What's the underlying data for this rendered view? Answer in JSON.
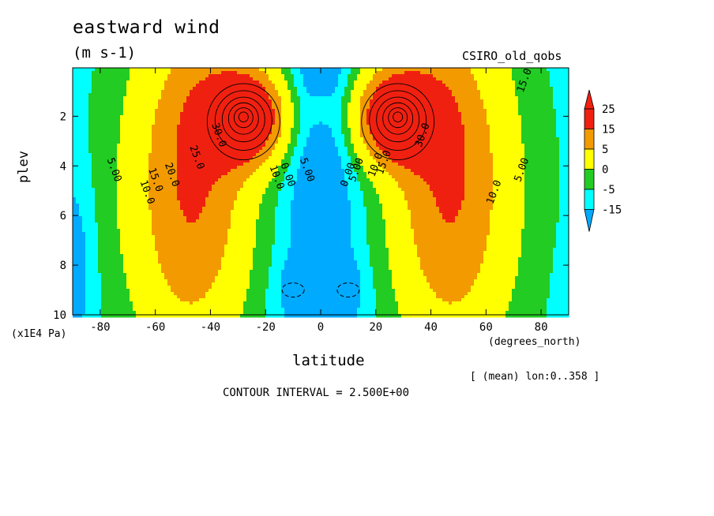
{
  "header": {
    "title": "eastward wind",
    "units": "(m s-1)",
    "model": "CSIRO_old_qobs"
  },
  "footer": {
    "ylabel_multiplier": "(x1E4 Pa)",
    "xlabel_units": "(degrees_north)",
    "averaging_note": "[ (mean) lon:0..358 ]",
    "contour_interval": "CONTOUR INTERVAL = 2.500E+00"
  },
  "chart_data": {
    "type": "heatmap",
    "title": "eastward wind",
    "xlabel": "latitude",
    "ylabel": "plev",
    "xlim": [
      -90,
      90
    ],
    "ylim": [
      10,
      0.05
    ],
    "y_inverted": true,
    "xticks": [
      -80,
      -60,
      -40,
      -20,
      0,
      20,
      40,
      60,
      80
    ],
    "yticks": [
      2,
      4,
      6,
      8,
      10
    ],
    "contour_interval": 2.5,
    "colorbar": {
      "labels": [
        "25",
        "15",
        "5",
        "0",
        "-5",
        "-15"
      ],
      "levels": [
        25,
        15,
        5,
        0,
        -5,
        -15
      ],
      "colors": [
        "#f02010",
        "#f39a00",
        "#ffff00",
        "#22cc22",
        "#00ffff",
        "#00aaff"
      ]
    },
    "contour_labels": [
      {
        "text": "30.0",
        "lat": -38,
        "plev": 2.8
      },
      {
        "text": "25.0",
        "lat": -46,
        "plev": 3.7
      },
      {
        "text": "20.0",
        "lat": -55,
        "plev": 4.4
      },
      {
        "text": "15.0",
        "lat": -61,
        "plev": 4.6
      },
      {
        "text": "10.0",
        "lat": -64,
        "plev": 5.1
      },
      {
        "text": "5.00",
        "lat": -76,
        "plev": 4.2
      },
      {
        "text": "5.00",
        "lat": -6,
        "plev": 4.2
      },
      {
        "text": "0.00",
        "lat": -13,
        "plev": 4.4
      },
      {
        "text": "10.0",
        "lat": -17,
        "plev": 4.5
      },
      {
        "text": "0.00",
        "lat": 11,
        "plev": 4.4
      },
      {
        "text": "5.00",
        "lat": 14,
        "plev": 4.2
      },
      {
        "text": "10.0",
        "lat": 21,
        "plev": 4.0
      },
      {
        "text": "15.0",
        "lat": 24,
        "plev": 3.9
      },
      {
        "text": "30.0",
        "lat": 38,
        "plev": 2.8
      },
      {
        "text": "10.0",
        "lat": 64,
        "plev": 5.1
      },
      {
        "text": "5.00",
        "lat": 74,
        "plev": 4.2
      },
      {
        "text": "15.0",
        "lat": 75,
        "plev": 0.6
      }
    ],
    "jet_cores": [
      {
        "lat": -28,
        "plev": 2.0,
        "value": 45
      },
      {
        "lat": 28,
        "plev": 2.0,
        "value": 45
      }
    ],
    "easterly_minima": [
      {
        "lat": -10,
        "plev": 9.0
      },
      {
        "lat": 10,
        "plev": 9.0
      }
    ]
  }
}
